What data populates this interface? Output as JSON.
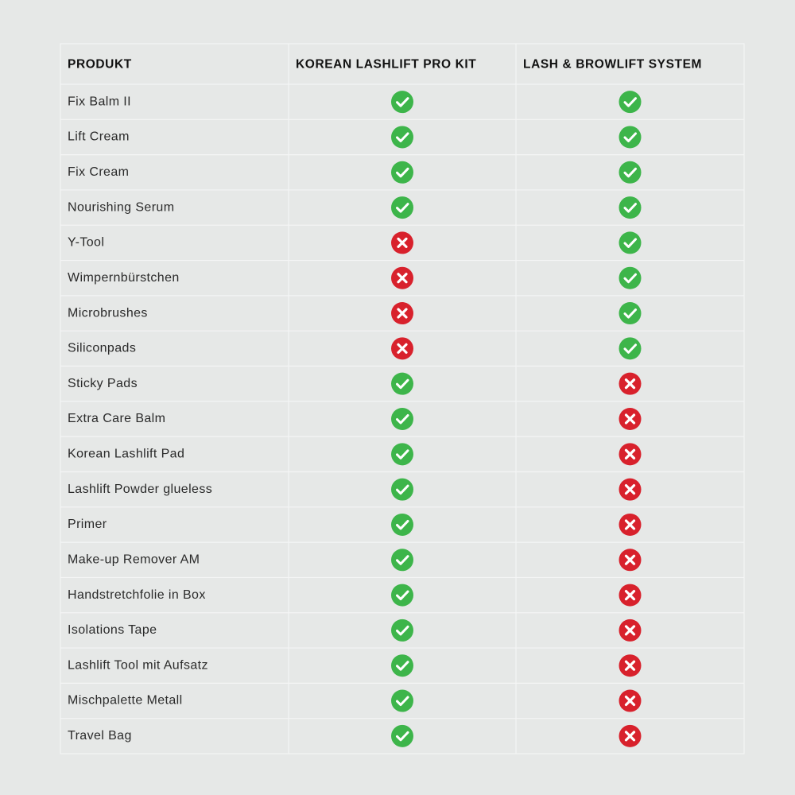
{
  "table": {
    "header": [
      "PRODUKT",
      "KOREAN LASHLIFT PRO KIT",
      "LASH & BROWLIFT SYSTEM"
    ],
    "rows": [
      [
        "Fix Balm II",
        true,
        true
      ],
      [
        "Lift Cream",
        true,
        true
      ],
      [
        "Fix Cream",
        true,
        true
      ],
      [
        "Nourishing Serum",
        true,
        true
      ],
      [
        "Y-Tool",
        false,
        true
      ],
      [
        "Wimpernbürstchen",
        false,
        true
      ],
      [
        "Microbrushes",
        false,
        true
      ],
      [
        "Siliconpads",
        false,
        true
      ],
      [
        "Sticky Pads",
        true,
        false
      ],
      [
        "Extra Care Balm",
        true,
        false
      ],
      [
        "Korean Lashlift Pad",
        true,
        false
      ],
      [
        "Lashlift Powder glueless",
        true,
        false
      ],
      [
        "Primer",
        true,
        false
      ],
      [
        "Make-up Remover AM",
        true,
        false
      ],
      [
        "Handstretchfolie in Box",
        true,
        false
      ],
      [
        "Isolations Tape",
        true,
        false
      ],
      [
        "Lashlift Tool mit Aufsatz",
        true,
        false
      ],
      [
        "Mischpalette Metall",
        true,
        false
      ],
      [
        "Travel Bag",
        true,
        false
      ]
    ]
  }
}
